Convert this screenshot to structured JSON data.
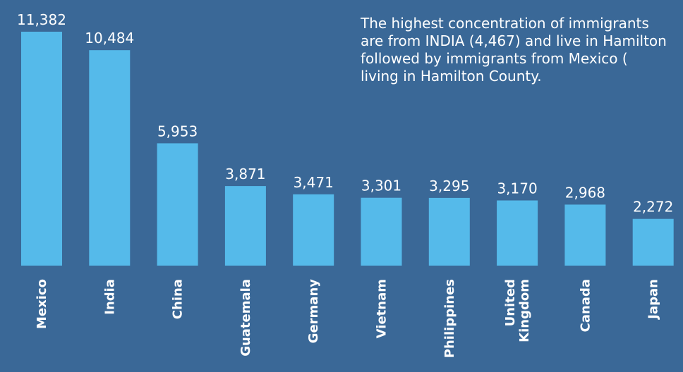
{
  "colors": {
    "background": "#3a6897",
    "bar": "#55baea",
    "text": "#ffffff"
  },
  "annotation": {
    "lines": [
      "The highest concentration of immigrants",
      "are from INDIA (4,467) and live in Hamilton",
      "followed by immigrants from Mexico (",
      "living in Hamilton County."
    ]
  },
  "chart_data": {
    "type": "bar",
    "categories": [
      "Mexico",
      "India",
      "China",
      "Guatemala",
      "Germany",
      "Vietnam",
      "Philippines",
      "United Kingdom",
      "Canada",
      "Japan"
    ],
    "category_lines": [
      [
        "Mexico"
      ],
      [
        "India"
      ],
      [
        "China"
      ],
      [
        "Guatemala"
      ],
      [
        "Germany"
      ],
      [
        "Vietnam"
      ],
      [
        "Philippines"
      ],
      [
        "United",
        "Kingdom"
      ],
      [
        "Canada"
      ],
      [
        "Japan"
      ]
    ],
    "values": [
      11382,
      10484,
      5953,
      3871,
      3471,
      3301,
      3295,
      3170,
      2968,
      2272
    ],
    "value_labels": [
      "11,382",
      "10,484",
      "5,953",
      "3,871",
      "3,471",
      "3,301",
      "3,295",
      "3,170",
      "2,968",
      "2,272"
    ],
    "title": "",
    "xlabel": "",
    "ylabel": "",
    "ylim": [
      0,
      11382
    ],
    "grid": false,
    "legend": "none"
  }
}
